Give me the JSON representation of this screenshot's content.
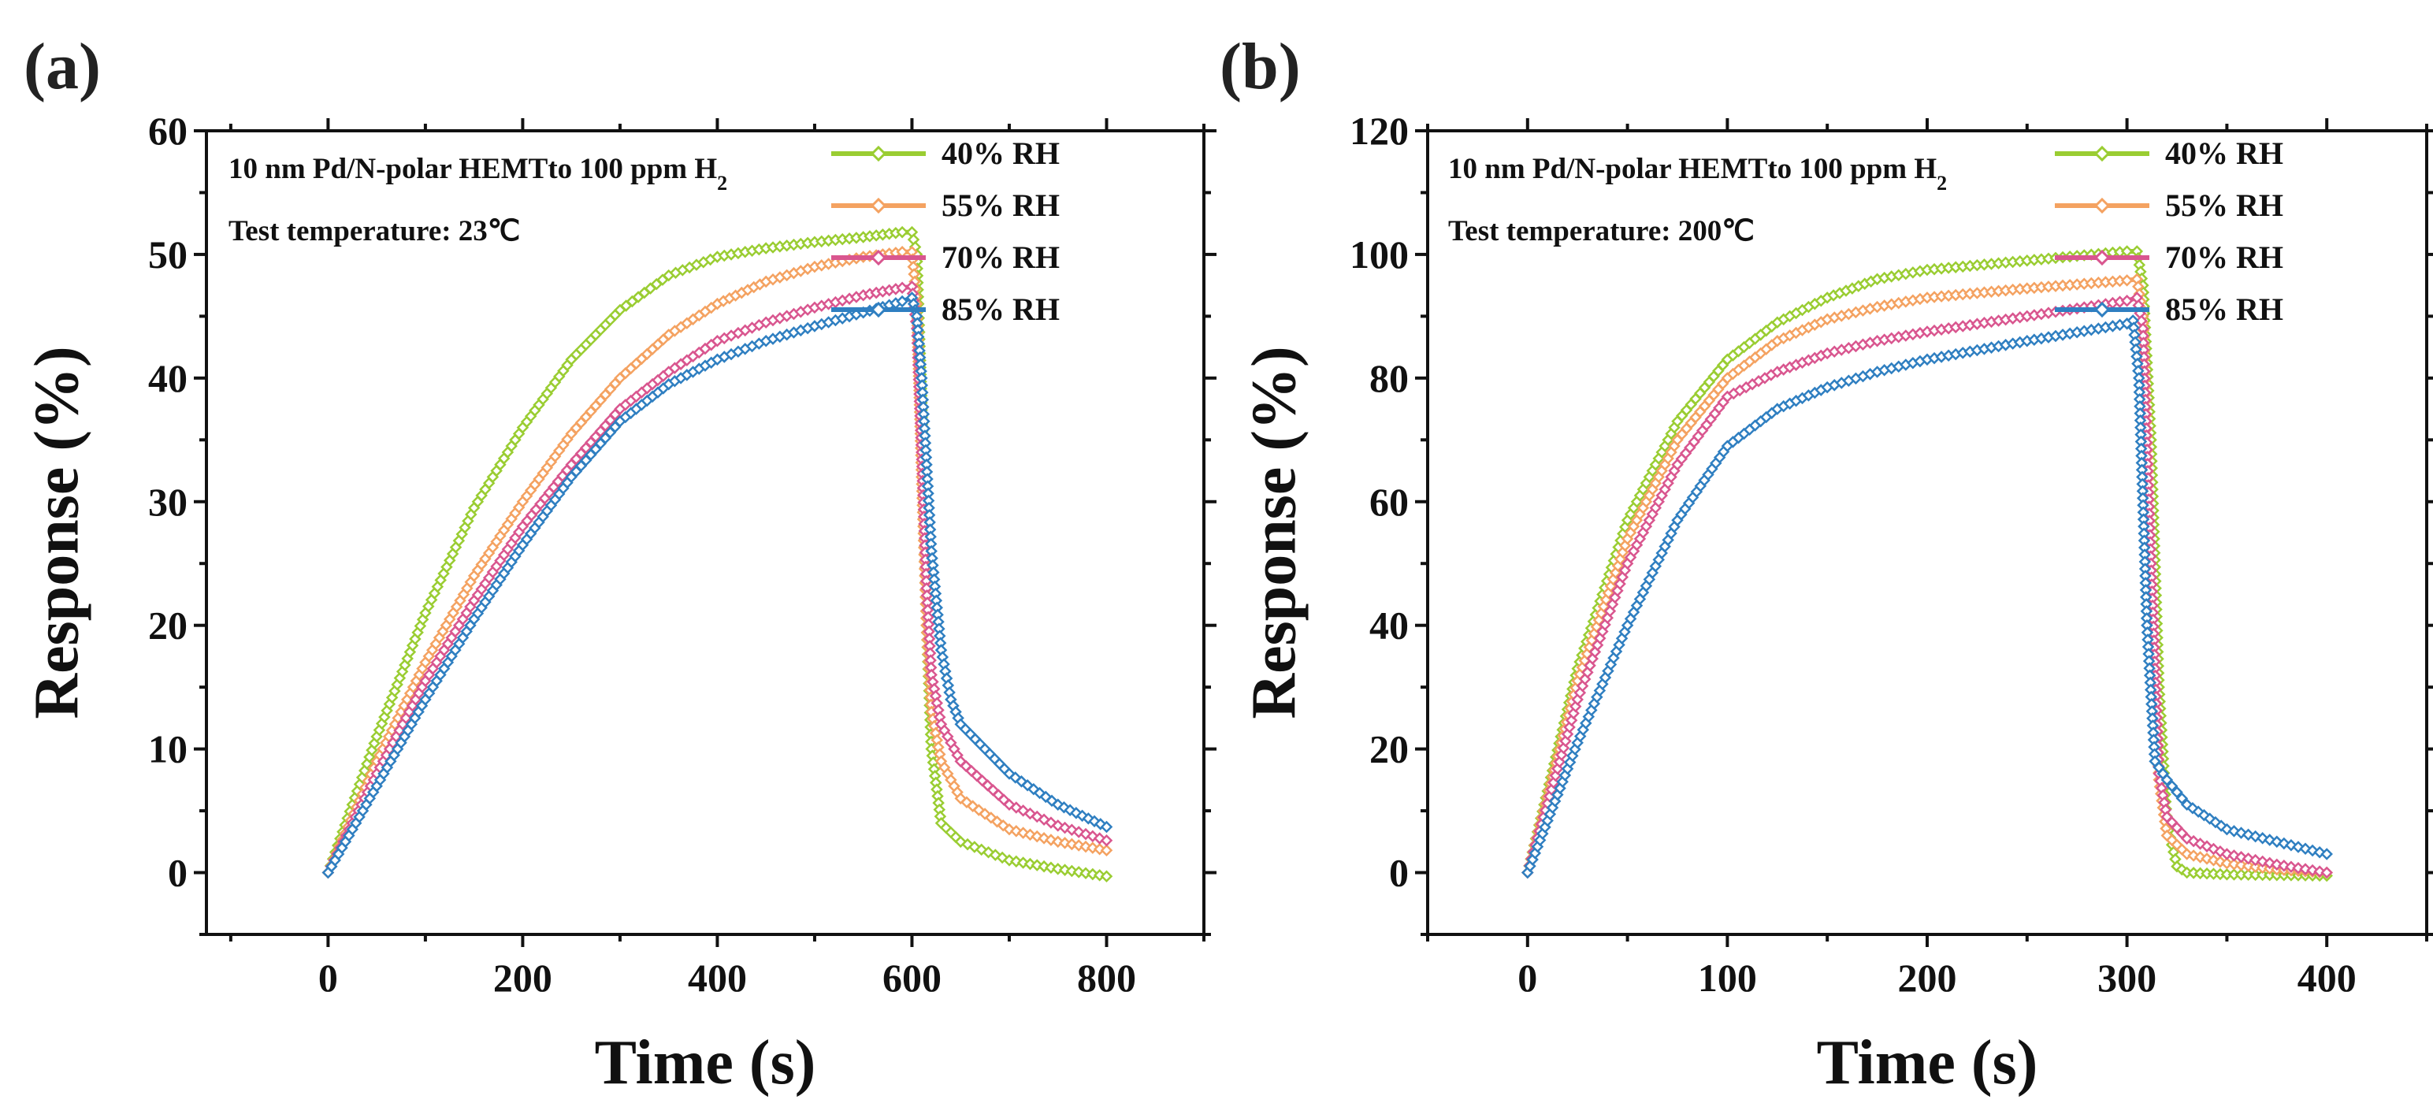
{
  "chart_data": [
    {
      "panel": "(a)",
      "type": "line",
      "title": "",
      "annotation_line1": "10 nm Pd/N-polar HEMTto 100 ppm H",
      "annotation_sub": "2",
      "annotation_line2": "Test temperature: 23℃",
      "xlabel": "Time (s)",
      "ylabel": "Response (%)",
      "xlim": [
        -125,
        900
      ],
      "ylim": [
        -5,
        60
      ],
      "xticks": [
        0,
        200,
        400,
        600,
        800
      ],
      "yticks": [
        0,
        10,
        20,
        30,
        40,
        50,
        60
      ],
      "legend_position": "top-right",
      "series": [
        {
          "name": "40% RH",
          "color": "#9acd32",
          "x": [
            0,
            50,
            100,
            150,
            200,
            250,
            300,
            350,
            400,
            450,
            500,
            550,
            590,
            600,
            605,
            610,
            615,
            620,
            630,
            650,
            700,
            750,
            800
          ],
          "y": [
            0,
            11,
            21,
            29.5,
            36,
            41.5,
            45.5,
            48.3,
            49.8,
            50.5,
            51,
            51.4,
            51.8,
            51.8,
            50,
            38,
            20,
            10,
            4,
            2.5,
            1,
            0.3,
            -0.3
          ]
        },
        {
          "name": "55% RH",
          "color": "#f4a261",
          "x": [
            0,
            50,
            100,
            150,
            200,
            250,
            300,
            350,
            400,
            450,
            500,
            550,
            590,
            600,
            605,
            610,
            615,
            620,
            630,
            650,
            700,
            750,
            800
          ],
          "y": [
            0,
            9,
            17,
            24,
            30,
            35.5,
            40,
            43.5,
            46,
            47.8,
            49,
            49.8,
            50.2,
            50.2,
            46,
            32,
            20,
            13,
            9,
            6,
            3.5,
            2.5,
            1.8
          ]
        },
        {
          "name": "70% RH",
          "color": "#d9568f",
          "x": [
            0,
            50,
            100,
            150,
            200,
            250,
            300,
            350,
            400,
            450,
            500,
            550,
            590,
            600,
            605,
            610,
            615,
            620,
            630,
            650,
            700,
            750,
            800
          ],
          "y": [
            0,
            8,
            15.5,
            22,
            28,
            33,
            37.5,
            40.5,
            43,
            44.5,
            45.7,
            46.7,
            47.3,
            47.4,
            44,
            34,
            23,
            16,
            12,
            9,
            5.5,
            3.8,
            2.6
          ]
        },
        {
          "name": "85% RH",
          "color": "#2f7fc1",
          "x": [
            0,
            50,
            100,
            150,
            200,
            250,
            300,
            350,
            400,
            450,
            500,
            550,
            590,
            600,
            605,
            610,
            615,
            620,
            630,
            640,
            650,
            700,
            750,
            800
          ],
          "y": [
            0,
            7,
            14,
            20.5,
            26.5,
            32,
            36.5,
            39.5,
            41.5,
            43,
            44.2,
            45.3,
            46.2,
            46.5,
            45,
            40,
            33,
            26,
            18,
            14,
            12,
            8,
            5.5,
            3.7
          ]
        }
      ]
    },
    {
      "panel": "(b)",
      "type": "line",
      "title": "",
      "annotation_line1": "10 nm Pd/N-polar HEMTto 100 ppm H",
      "annotation_sub": "2",
      "annotation_line2": "Test temperature: 200℃",
      "xlabel": "Time (s)",
      "ylabel": "Response (%)",
      "xlim": [
        -50,
        450
      ],
      "ylim": [
        -10,
        120
      ],
      "xticks": [
        0,
        100,
        200,
        300,
        400
      ],
      "yticks": [
        0,
        20,
        40,
        60,
        80,
        100,
        120
      ],
      "legend_position": "top-right",
      "series": [
        {
          "name": "40% RH",
          "color": "#9acd32",
          "x": [
            0,
            25,
            50,
            75,
            100,
            125,
            150,
            175,
            200,
            250,
            300,
            305,
            308,
            312,
            316,
            320,
            325,
            330,
            350,
            400
          ],
          "y": [
            0,
            33,
            57,
            73,
            83,
            89,
            93,
            96,
            97.5,
            99,
            100.5,
            100.5,
            95,
            70,
            30,
            8,
            1,
            0,
            -0.3,
            -0.5
          ]
        },
        {
          "name": "55% RH",
          "color": "#f4a261",
          "x": [
            0,
            25,
            50,
            75,
            100,
            125,
            150,
            175,
            200,
            250,
            300,
            305,
            308,
            312,
            316,
            320,
            330,
            350,
            375,
            400
          ],
          "y": [
            0,
            31,
            54,
            70,
            80,
            86,
            89.5,
            91.5,
            93,
            94.5,
            95.8,
            96,
            90,
            50,
            15,
            6,
            3,
            1.5,
            0.5,
            0
          ]
        },
        {
          "name": "70% RH",
          "color": "#d9568f",
          "x": [
            0,
            25,
            50,
            75,
            100,
            125,
            150,
            175,
            200,
            250,
            300,
            305,
            308,
            312,
            316,
            320,
            330,
            350,
            375,
            400
          ],
          "y": [
            0,
            28,
            50,
            66,
            77,
            81,
            84,
            86,
            87.5,
            90,
            92.5,
            93,
            88,
            50,
            16,
            9,
            5.5,
            3,
            1.3,
            0
          ]
        },
        {
          "name": "85% RH",
          "color": "#2f7fc1",
          "x": [
            0,
            25,
            50,
            75,
            100,
            125,
            150,
            175,
            200,
            250,
            300,
            303,
            306,
            310,
            314,
            320,
            330,
            350,
            375,
            400
          ],
          "y": [
            0,
            21,
            40,
            57,
            69,
            75,
            78.5,
            81,
            83,
            86,
            88.8,
            89.3,
            80,
            40,
            18,
            15,
            11,
            7,
            5,
            3
          ]
        }
      ]
    }
  ]
}
